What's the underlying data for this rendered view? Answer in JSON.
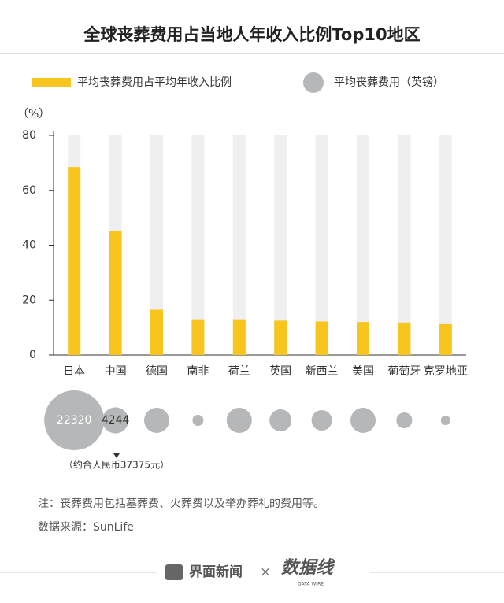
{
  "chart_data": {
    "type": "bar",
    "title": "全球丧葬费用占当地人年收入比例Top10地区",
    "y_label": "（%）",
    "categories": [
      "日本",
      "中国",
      "德国",
      "南非",
      "荷兰",
      "英国",
      "新西兰",
      "美国",
      "葡萄牙",
      "克罗地亚"
    ],
    "series": [
      {
        "name": "平均丧葬费用占平均年收入比例",
        "color": "#f7c51e",
        "values": [
          68.5,
          45.3,
          16.5,
          13,
          13,
          12.5,
          12.2,
          12,
          11.8,
          11.5
        ]
      },
      {
        "name": "平均丧葬费用（英镑）",
        "color": "#b5b7b8",
        "values": [
          22320,
          4244,
          3950,
          760,
          3950,
          3030,
          2610,
          3950,
          1550,
          560
        ],
        "value_labels": [
          "22320",
          "4244",
          null,
          null,
          null,
          null,
          null,
          null,
          null,
          null
        ]
      }
    ],
    "ylim": [
      0,
      80
    ],
    "yticks": [
      0,
      20,
      40,
      60,
      80
    ],
    "annotation": "（约合人民币37375元）",
    "note": "注：丧葬费用包括墓葬费、火葬费以及举办葬礼的费用等。",
    "source": "数据来源：SunLife"
  },
  "footer": {
    "brand": "界面新闻",
    "separator": "×",
    "logo": "数据线",
    "logo_sub": "DATA WIRE"
  }
}
